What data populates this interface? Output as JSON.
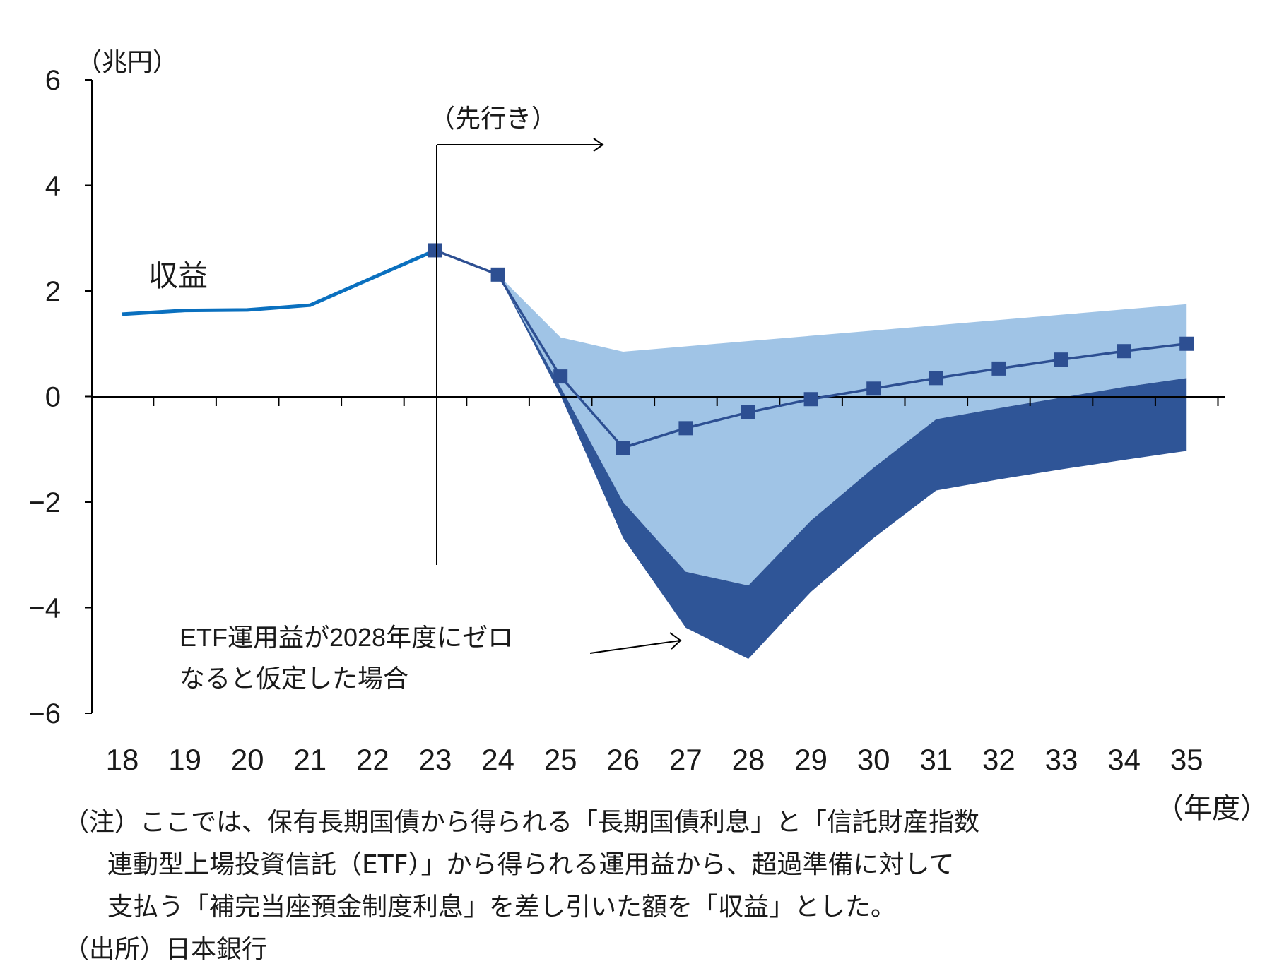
{
  "chart_data": {
    "type": "line",
    "y_unit_label": "（兆円）",
    "x_unit_label": "（年度）",
    "ylim": [
      -6,
      6
    ],
    "yticks": [
      "6",
      "4",
      "2",
      "0",
      "−2",
      "−4",
      "−6"
    ],
    "ytick_values": [
      6,
      4,
      2,
      0,
      -2,
      -4,
      -6
    ],
    "categories": [
      "18",
      "19",
      "20",
      "21",
      "22",
      "23",
      "24",
      "25",
      "26",
      "27",
      "28",
      "29",
      "30",
      "31",
      "32",
      "33",
      "34",
      "35"
    ],
    "forecast_start": "23",
    "forecast_label": "（先行き）",
    "grid": false,
    "series": [
      {
        "name": "収益",
        "style": "line-actual",
        "color": "#0a70bf",
        "x": [
          "18",
          "19",
          "20",
          "21",
          "22",
          "23"
        ],
        "values": [
          1.56,
          1.63,
          1.64,
          1.73,
          2.25,
          2.77
        ]
      },
      {
        "style": "line-forecast-markers",
        "color": "#2d4f92",
        "x": [
          "23",
          "24",
          "25",
          "26",
          "27",
          "28",
          "29",
          "30",
          "31",
          "32",
          "33",
          "34",
          "35"
        ],
        "values": [
          2.77,
          2.31,
          0.38,
          -0.97,
          -0.6,
          -0.3,
          -0.05,
          0.15,
          0.35,
          0.53,
          0.7,
          0.86,
          1.0
        ]
      }
    ],
    "bands": [
      {
        "style": "range-light",
        "color": "#a0c4e6",
        "x": [
          "24",
          "25",
          "26",
          "27",
          "28",
          "29",
          "30",
          "31",
          "32",
          "33",
          "34",
          "35"
        ],
        "upper": [
          2.31,
          1.12,
          0.85,
          0.95,
          1.05,
          1.15,
          1.25,
          1.35,
          1.45,
          1.55,
          1.65,
          1.75
        ],
        "lower": [
          2.31,
          0.18,
          -2.0,
          -3.32,
          -3.58,
          -2.35,
          -1.35,
          -0.43,
          -0.22,
          -0.02,
          0.18,
          0.35
        ]
      },
      {
        "style": "range-dark",
        "note": "ETF運用益が2028年度にゼロ",
        "note2": "なると仮定した場合",
        "color": "#2f5597",
        "x": [
          "24",
          "25",
          "26",
          "27",
          "28",
          "29",
          "30",
          "31",
          "32",
          "33",
          "34",
          "35"
        ],
        "upper": [
          2.31,
          0.18,
          -2.0,
          -3.32,
          -3.58,
          -2.35,
          -1.35,
          -0.43,
          -0.22,
          -0.02,
          0.18,
          0.35
        ],
        "lower": [
          2.31,
          0.02,
          -2.68,
          -4.38,
          -4.97,
          -3.7,
          -2.68,
          -1.78,
          -1.57,
          -1.38,
          -1.2,
          -1.03
        ]
      }
    ]
  },
  "notes": {
    "line1": "（注）ここでは、保有長期国債から得られる「長期国債利息」と「信託財産指数",
    "line2": "連動型上場投資信託（ETF）」から得られる運用益から、超過準備に対して",
    "line3": "支払う「補完当座預金制度利息」を差し引いた額を「収益」とした。",
    "source": "（出所）日本銀行"
  }
}
